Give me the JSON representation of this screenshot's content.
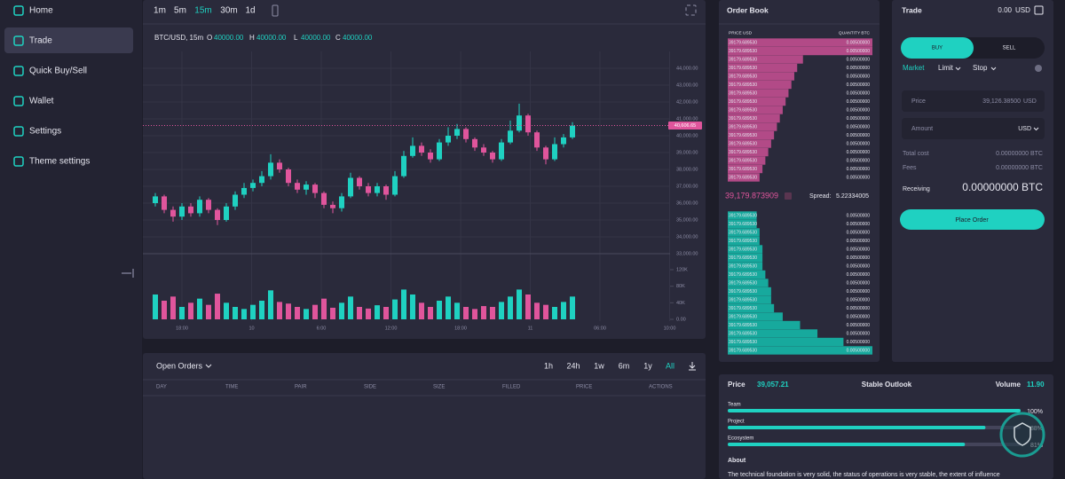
{
  "sidebar": {
    "items": [
      "Home",
      "Trade",
      "Quick Buy/Sell",
      "Wallet",
      "Settings",
      "Theme settings"
    ],
    "active": 1
  },
  "chart": {
    "type": "candlestick",
    "intervals": [
      "1m",
      "5m",
      "15m",
      "30m",
      "1d"
    ],
    "active_interval": 2,
    "symbol": "BTC/USD, 15m",
    "ohlc": [
      {
        "key": "O",
        "value": "40000.00"
      },
      {
        "key": "H",
        "value": "40000.00"
      },
      {
        "key": "L",
        "value": "40000.00"
      },
      {
        "key": "C",
        "value": "40000.00"
      }
    ],
    "ylim": [
      32500,
      45000
    ],
    "yticks": [
      {
        "value": 44000,
        "label": "44,000.00"
      },
      {
        "value": 43000,
        "label": "43,000.00"
      },
      {
        "value": 42000,
        "label": "42,000.00"
      },
      {
        "value": 41000,
        "label": "41,000.00"
      },
      {
        "value": 40000,
        "label": "40,000.00"
      },
      {
        "value": 39000,
        "label": "39,000.00"
      },
      {
        "value": 38000,
        "label": "38,000.00"
      },
      {
        "value": 37000,
        "label": "37,000.00"
      },
      {
        "value": 36000,
        "label": "36,000.00"
      },
      {
        "value": 35000,
        "label": "35,000.00"
      },
      {
        "value": 34000,
        "label": "34,000.00"
      },
      {
        "value": 33000,
        "label": "33,000.00"
      }
    ],
    "volume_ylim": [
      0,
      130000
    ],
    "volume_ticks": [
      {
        "value": 120000,
        "label": "120K"
      },
      {
        "value": 80000,
        "label": "80K"
      },
      {
        "value": 40000,
        "label": "40K"
      },
      {
        "value": 0,
        "label": "0.00"
      }
    ],
    "x_labels": [
      "18:00",
      "10",
      "6:00",
      "12:00",
      "18:00",
      "11",
      "06:00",
      "10:00"
    ],
    "last_price": {
      "value": 40606.65,
      "label": "40,606.65"
    },
    "up_color": "#1fd1c1",
    "down_color": "#e0559c",
    "candles": [
      {
        "o": 36000,
        "h": 36600,
        "l": 35800,
        "c": 36400
      },
      {
        "o": 36400,
        "h": 36500,
        "l": 35400,
        "c": 35600
      },
      {
        "o": 35600,
        "h": 35800,
        "l": 34900,
        "c": 35200
      },
      {
        "o": 35200,
        "h": 36000,
        "l": 35000,
        "c": 35800
      },
      {
        "o": 35800,
        "h": 36000,
        "l": 35200,
        "c": 35400
      },
      {
        "o": 35400,
        "h": 36400,
        "l": 35200,
        "c": 36200
      },
      {
        "o": 36200,
        "h": 36300,
        "l": 35400,
        "c": 35600
      },
      {
        "o": 35600,
        "h": 35700,
        "l": 34700,
        "c": 35000
      },
      {
        "o": 35000,
        "h": 36000,
        "l": 34900,
        "c": 35800
      },
      {
        "o": 35800,
        "h": 36700,
        "l": 35600,
        "c": 36500
      },
      {
        "o": 36500,
        "h": 37200,
        "l": 36300,
        "c": 36900
      },
      {
        "o": 36900,
        "h": 37400,
        "l": 36700,
        "c": 37200
      },
      {
        "o": 37200,
        "h": 37900,
        "l": 37000,
        "c": 37600
      },
      {
        "o": 37600,
        "h": 38900,
        "l": 37400,
        "c": 38400
      },
      {
        "o": 38400,
        "h": 38600,
        "l": 37800,
        "c": 38000
      },
      {
        "o": 38000,
        "h": 38100,
        "l": 37000,
        "c": 37200
      },
      {
        "o": 37200,
        "h": 37400,
        "l": 36600,
        "c": 36800
      },
      {
        "o": 36800,
        "h": 37300,
        "l": 36500,
        "c": 37100
      },
      {
        "o": 37100,
        "h": 37200,
        "l": 36300,
        "c": 36600
      },
      {
        "o": 36600,
        "h": 36700,
        "l": 35700,
        "c": 35900
      },
      {
        "o": 35900,
        "h": 36100,
        "l": 35400,
        "c": 35700
      },
      {
        "o": 35700,
        "h": 36600,
        "l": 35500,
        "c": 36400
      },
      {
        "o": 36400,
        "h": 37800,
        "l": 36300,
        "c": 37500
      },
      {
        "o": 37500,
        "h": 37600,
        "l": 36800,
        "c": 37000
      },
      {
        "o": 37000,
        "h": 37200,
        "l": 36400,
        "c": 36600
      },
      {
        "o": 36600,
        "h": 37200,
        "l": 36400,
        "c": 37000
      },
      {
        "o": 37000,
        "h": 37100,
        "l": 36200,
        "c": 36500
      },
      {
        "o": 36500,
        "h": 37900,
        "l": 36400,
        "c": 37600
      },
      {
        "o": 37600,
        "h": 39100,
        "l": 37500,
        "c": 38800
      },
      {
        "o": 38800,
        "h": 39900,
        "l": 38700,
        "c": 39400
      },
      {
        "o": 39400,
        "h": 39600,
        "l": 38800,
        "c": 39000
      },
      {
        "o": 39000,
        "h": 39200,
        "l": 38400,
        "c": 38600
      },
      {
        "o": 38600,
        "h": 39800,
        "l": 38500,
        "c": 39600
      },
      {
        "o": 39600,
        "h": 40500,
        "l": 39400,
        "c": 40000
      },
      {
        "o": 40000,
        "h": 40700,
        "l": 39800,
        "c": 40400
      },
      {
        "o": 40400,
        "h": 40500,
        "l": 39600,
        "c": 39800
      },
      {
        "o": 39800,
        "h": 39900,
        "l": 39100,
        "c": 39300
      },
      {
        "o": 39300,
        "h": 39500,
        "l": 38800,
        "c": 39000
      },
      {
        "o": 39000,
        "h": 39100,
        "l": 38400,
        "c": 38600
      },
      {
        "o": 38600,
        "h": 39800,
        "l": 38500,
        "c": 39600
      },
      {
        "o": 39600,
        "h": 40900,
        "l": 39500,
        "c": 40300
      },
      {
        "o": 40300,
        "h": 41900,
        "l": 40200,
        "c": 41200
      },
      {
        "o": 41200,
        "h": 41300,
        "l": 40000,
        "c": 40200
      },
      {
        "o": 40200,
        "h": 40300,
        "l": 39100,
        "c": 39300
      },
      {
        "o": 39300,
        "h": 39400,
        "l": 38300,
        "c": 38600
      },
      {
        "o": 38600,
        "h": 39900,
        "l": 38500,
        "c": 39500
      },
      {
        "o": 39500,
        "h": 40100,
        "l": 39300,
        "c": 39900
      },
      {
        "o": 39900,
        "h": 40800,
        "l": 39800,
        "c": 40600
      }
    ],
    "volumes": [
      60000,
      45000,
      55000,
      30000,
      40000,
      50000,
      35000,
      62000,
      40000,
      30000,
      25000,
      35000,
      45000,
      70000,
      42000,
      38000,
      30000,
      25000,
      35000,
      50000,
      28000,
      40000,
      55000,
      30000,
      26000,
      34000,
      30000,
      48000,
      72000,
      60000,
      40000,
      30000,
      45000,
      55000,
      40000,
      30000,
      25000,
      32000,
      30000,
      42000,
      55000,
      72000,
      60000,
      40000,
      35000,
      30000,
      42000,
      55000
    ]
  },
  "order_book": {
    "title": "Order Book",
    "price_header": "PRICE USD",
    "quantity_header": "QUANTITY BTC",
    "asks": [
      [
        "39179.689530",
        "0.00500000",
        100
      ],
      [
        "39179.689530",
        "0.00500000",
        100
      ],
      [
        "39179.689530",
        "0.00500000",
        52
      ],
      [
        "39179.689530",
        "0.00500000",
        48
      ],
      [
        "39179.689530",
        "0.00500000",
        46
      ],
      [
        "39179.689530",
        "0.00500000",
        44
      ],
      [
        "39179.689530",
        "0.00500000",
        42
      ],
      [
        "39179.689530",
        "0.00500000",
        40
      ],
      [
        "39179.689530",
        "0.00500000",
        38
      ],
      [
        "39179.689530",
        "0.00500000",
        36
      ],
      [
        "39179.689530",
        "0.00500000",
        34
      ],
      [
        "39179.689530",
        "0.00500000",
        32
      ],
      [
        "39179.689530",
        "0.00500000",
        30
      ],
      [
        "39179.689530",
        "0.00500000",
        28
      ],
      [
        "39179.689530",
        "0.00500000",
        26
      ],
      [
        "39179.689530",
        "0.00500000",
        24
      ],
      [
        "39179.689530",
        "0.00500000",
        22
      ]
    ],
    "mid_price": "39,179.873909",
    "spread_label": "Spread:",
    "spread": "5.22334005",
    "bids": [
      [
        "39179.689530",
        "0.00500000",
        20
      ],
      [
        "39179.689530",
        "0.00500000",
        20
      ],
      [
        "39179.689530",
        "0.00500000",
        22
      ],
      [
        "39179.689530",
        "0.00500000",
        22
      ],
      [
        "39179.689530",
        "0.00500000",
        24
      ],
      [
        "39179.689530",
        "0.00500000",
        24
      ],
      [
        "39179.689530",
        "0.00500000",
        24
      ],
      [
        "39179.689530",
        "0.00500000",
        26
      ],
      [
        "39179.689530",
        "0.00500000",
        28
      ],
      [
        "39179.689530",
        "0.00500000",
        30
      ],
      [
        "39179.689530",
        "0.00500000",
        30
      ],
      [
        "39179.689530",
        "0.00500000",
        32
      ],
      [
        "39179.689530",
        "0.00500000",
        38
      ],
      [
        "39179.689530",
        "0.00500000",
        50
      ],
      [
        "39179.689530",
        "0.00500000",
        62
      ],
      [
        "39179.689530",
        "0.00500000",
        80
      ],
      [
        "39179.689530",
        "0.00500000",
        100
      ]
    ]
  },
  "trade": {
    "title": "Trade",
    "balance": "0.00",
    "currency": "USD",
    "tabs": [
      "BUY",
      "SELL"
    ],
    "order_types": [
      "Market",
      "Limit",
      "Stop"
    ],
    "price_label": "Price",
    "price_value": "39,126.38500",
    "price_unit": "USD",
    "amount_label": "Amount",
    "amount_unit": "USD",
    "total_cost_label": "Total cost",
    "total_cost": "0.00000000 BTC",
    "fees_label": "Fees",
    "fees": "0.00000000 BTC",
    "receiving_label": "Receiving",
    "receiving": "0.00000000 BTC",
    "button": "Place Order"
  },
  "open_orders": {
    "title": "Open Orders",
    "ranges": [
      "1h",
      "24h",
      "1w",
      "6m",
      "1y",
      "All"
    ],
    "columns": [
      "DAY",
      "TIME",
      "PAIR",
      "SIDE",
      "SIZE",
      "FILLED",
      "PRICE",
      "ACTIONS"
    ]
  },
  "outlook": {
    "price_label": "Price",
    "price": "39,057.21",
    "title": "Stable Outlook",
    "volume_label": "Volume",
    "volume": "11.90",
    "bars": [
      {
        "name": "Team",
        "value": 100,
        "value_label": "100%"
      },
      {
        "name": "Project",
        "value": 88,
        "value_label": "88%"
      },
      {
        "name": "Ecosystem",
        "value": 81,
        "value_label": "81%"
      }
    ],
    "about_title": "About",
    "about": "The technical foundation is very solid, the status of operations is very stable, the extent of influence"
  }
}
